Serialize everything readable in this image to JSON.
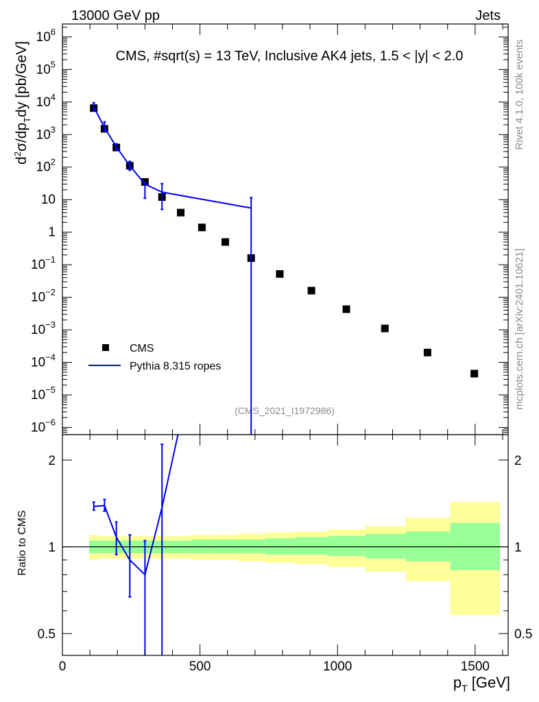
{
  "header": {
    "left": "13000 GeV pp",
    "right": "Jets"
  },
  "side": {
    "top": "Rivet 4.1.0,  100k events",
    "bottom": "mcplots.cern.ch [arXiv:2401.10621]"
  },
  "chart_data": [
    {
      "type": "scatter",
      "panel": "main",
      "title": "CMS, #sqrt(s) = 13 TeV, Inclusive AK4 jets, 1.5 < |y| < 2.0",
      "watermark": "(CMS_2021_I1972986)",
      "ylabel": "d²σ/dp_T dy [pb/GeV]",
      "ylabel_parts": {
        "a": "d",
        "b": "2",
        "c": "σ/dp",
        "d": "T",
        "e": "dy [pb/GeV]"
      },
      "yscale": "log",
      "ylim": [
        6e-07,
        2500000.0
      ],
      "xlim": [
        0,
        1620
      ],
      "y_ticks": [
        {
          "v": 1000000.0,
          "base": "10",
          "exp": "6"
        },
        {
          "v": 100000.0,
          "base": "10",
          "exp": "5"
        },
        {
          "v": 10000.0,
          "base": "10",
          "exp": "4"
        },
        {
          "v": 1000.0,
          "base": "10",
          "exp": "3"
        },
        {
          "v": 100.0,
          "base": "10",
          "exp": "2"
        },
        {
          "v": 10,
          "base": "10",
          "exp": ""
        },
        {
          "v": 1,
          "base": "1",
          "exp": ""
        },
        {
          "v": 0.1,
          "base": "10",
          "exp": "−1"
        },
        {
          "v": 0.01,
          "base": "10",
          "exp": "−2"
        },
        {
          "v": 0.001,
          "base": "10",
          "exp": "−3"
        },
        {
          "v": 0.0001,
          "base": "10",
          "exp": "−4"
        },
        {
          "v": 1e-05,
          "base": "10",
          "exp": "−5"
        },
        {
          "v": 1e-06,
          "base": "10",
          "exp": "−6"
        }
      ],
      "legend": {
        "position": "bottom-left",
        "entries": [
          "CMS",
          "Pythia 8.315 ropes"
        ]
      },
      "series": [
        {
          "name": "CMS",
          "marker": "square",
          "color": "#000000",
          "x": [
            114,
            153,
            196,
            245,
            300,
            362,
            430,
            507,
            592,
            686,
            790,
            905,
            1032,
            1172,
            1327,
            1497
          ],
          "y": [
            6500,
            1500,
            400,
            110,
            35,
            12,
            4,
            1.4,
            0.5,
            0.16,
            0.052,
            0.016,
            0.0043,
            0.0011,
            0.0002,
            4.5e-05
          ]
        },
        {
          "name": "Pythia 8.315 ropes",
          "marker": "line",
          "color": "#0000ee",
          "x": [
            114,
            153,
            196,
            245,
            300,
            362,
            686
          ],
          "y": [
            7000,
            1650,
            420,
            110,
            30,
            17,
            5.5
          ],
          "err_up": [
            2500,
            800,
            100,
            40,
            3,
            14,
            6
          ],
          "err_down": [
            1500,
            400,
            80,
            30,
            19,
            12,
            5.5
          ]
        }
      ]
    },
    {
      "type": "line",
      "panel": "ratio",
      "ylabel": "Ratio to CMS",
      "xlabel": "p_T [GeV]",
      "xlabel_parts": {
        "a": "p",
        "b": "T",
        "c": " [GeV]"
      },
      "yscale": "log",
      "ylim": [
        0.42,
        2.45
      ],
      "xlim": [
        0,
        1620
      ],
      "x_ticks": [
        {
          "v": 0,
          "label": "0"
        },
        {
          "v": 500,
          "label": "500"
        },
        {
          "v": 1000,
          "label": "1000"
        },
        {
          "v": 1500,
          "label": "1500"
        }
      ],
      "y_ticks": [
        {
          "v": 0.5,
          "label": "0.5"
        },
        {
          "v": 1,
          "label": "1"
        },
        {
          "v": 2,
          "label": "2"
        }
      ],
      "bands": {
        "edges": [
          97,
          133,
          174,
          219,
          272,
          330,
          395,
          468,
          548,
          638,
          737,
          846,
          967,
          1101,
          1248,
          1410,
          1590
        ],
        "inner": [
          [
            0.95,
            1.05
          ],
          [
            0.95,
            1.05
          ],
          [
            0.95,
            1.05
          ],
          [
            0.95,
            1.05
          ],
          [
            0.95,
            1.05
          ],
          [
            0.95,
            1.05
          ],
          [
            0.95,
            1.05
          ],
          [
            0.95,
            1.06
          ],
          [
            0.95,
            1.06
          ],
          [
            0.95,
            1.06
          ],
          [
            0.94,
            1.07
          ],
          [
            0.94,
            1.08
          ],
          [
            0.93,
            1.09
          ],
          [
            0.91,
            1.11
          ],
          [
            0.89,
            1.13
          ],
          [
            0.83,
            1.21
          ]
        ],
        "outer": [
          [
            0.9,
            1.1
          ],
          [
            0.91,
            1.09
          ],
          [
            0.91,
            1.09
          ],
          [
            0.91,
            1.09
          ],
          [
            0.91,
            1.09
          ],
          [
            0.91,
            1.09
          ],
          [
            0.91,
            1.09
          ],
          [
            0.9,
            1.1
          ],
          [
            0.9,
            1.1
          ],
          [
            0.89,
            1.11
          ],
          [
            0.88,
            1.12
          ],
          [
            0.87,
            1.13
          ],
          [
            0.85,
            1.15
          ],
          [
            0.82,
            1.18
          ],
          [
            0.76,
            1.26
          ],
          [
            0.58,
            1.43
          ]
        ],
        "inner_color": "#99ff99",
        "outer_color": "#ffff99"
      },
      "series": [
        {
          "name": "Pythia 8.315 ropes",
          "color": "#0000ee",
          "x": [
            114,
            153,
            196,
            245,
            300,
            362,
            420
          ],
          "y": [
            1.38,
            1.39,
            1.08,
            0.9,
            0.8,
            1.37,
            2.45
          ],
          "err_up": [
            0.05,
            0.07,
            0.14,
            0.2,
            0.25,
            0.9,
            0
          ],
          "err_down": [
            0.04,
            0.06,
            0.14,
            0.23,
            0.4,
            0.96,
            0
          ]
        }
      ]
    }
  ]
}
